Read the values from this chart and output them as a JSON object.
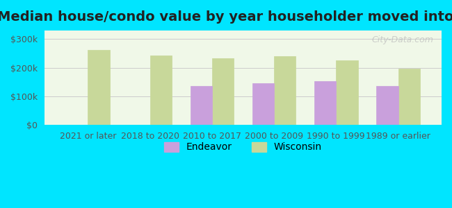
{
  "title": "Median house/condo value by year householder moved into unit",
  "categories": [
    "2021 or later",
    "2018 to 2020",
    "2010 to 2017",
    "2000 to 2009",
    "1990 to 1999",
    "1989 or earlier"
  ],
  "endeavor_values": [
    null,
    null,
    135000,
    145000,
    152000,
    137000
  ],
  "wisconsin_values": [
    262000,
    242000,
    232000,
    240000,
    226000,
    197000
  ],
  "endeavor_color": "#c9a0dc",
  "wisconsin_color": "#c8d89a",
  "background_outer": "#00e5ff",
  "background_inner": "#f0f8e8",
  "ylim": [
    0,
    330000
  ],
  "yticks": [
    0,
    100000,
    200000,
    300000
  ],
  "ytick_labels": [
    "$0",
    "$100k",
    "$200k",
    "$300k"
  ],
  "bar_width": 0.35,
  "legend_labels": [
    "Endeavor",
    "Wisconsin"
  ],
  "watermark": "City-Data.com",
  "title_fontsize": 14,
  "tick_fontsize": 9,
  "legend_fontsize": 10
}
